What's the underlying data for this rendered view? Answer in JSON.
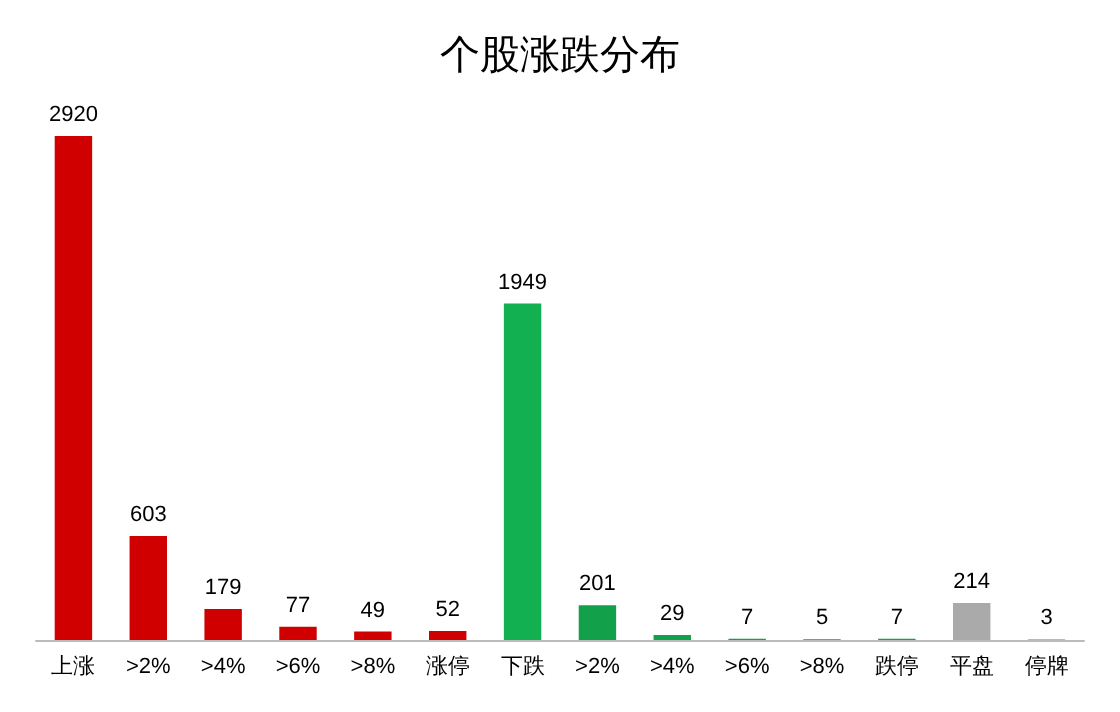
{
  "chart_data": {
    "type": "bar",
    "title": "个股涨跌分布",
    "categories": [
      "上涨",
      ">2%",
      ">4%",
      ">6%",
      ">8%",
      "涨停",
      "下跌",
      ">2%",
      ">4%",
      ">6%",
      ">8%",
      "跌停",
      "平盘",
      "停牌"
    ],
    "values": [
      2920,
      603,
      179,
      77,
      49,
      52,
      1949,
      201,
      29,
      7,
      5,
      7,
      214,
      3
    ],
    "colors": [
      "#d00000",
      "#d00000",
      "#d00000",
      "#d00000",
      "#d00000",
      "#d00000",
      "#12b050",
      "#12a04a",
      "#12a04a",
      "#12a04a",
      "#12a04a",
      "#12a04a",
      "#aaaaaa",
      "#777777"
    ],
    "data_labels": true
  }
}
